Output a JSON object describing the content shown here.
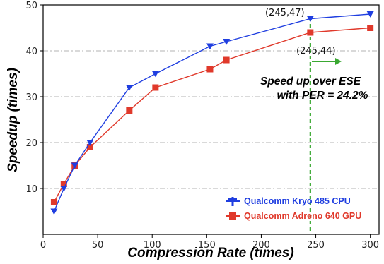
{
  "chart_data": {
    "type": "line",
    "xlabel": "Compression Rate (times)",
    "ylabel": "Speedup (times)",
    "xlim": [
      0,
      308
    ],
    "ylim": [
      0,
      50
    ],
    "xticks": [
      0,
      50,
      100,
      150,
      200,
      250,
      300
    ],
    "yticks": [
      10,
      20,
      30,
      40,
      50
    ],
    "grid": "horizontal dash-dot",
    "legend_position": "bottom-right",
    "series": [
      {
        "name": "Qualcomm Kryo 485 CPU",
        "color": "#1f3ee0",
        "marker": "triangle-down",
        "x": [
          10,
          19,
          29,
          43,
          79,
          103,
          153,
          168,
          245,
          300
        ],
        "y": [
          5,
          10,
          15,
          20,
          32,
          35,
          41,
          42,
          47,
          48
        ]
      },
      {
        "name": "Qualcomm Adreno 640 GPU",
        "color": "#e0392b",
        "marker": "square",
        "x": [
          10,
          19,
          29,
          43,
          79,
          103,
          153,
          168,
          245,
          300
        ],
        "y": [
          7,
          11,
          15,
          19,
          27,
          32,
          36,
          38,
          44,
          45
        ]
      }
    ],
    "annotations": [
      {
        "text": "(245,47)",
        "x": 245,
        "y": 47
      },
      {
        "text": "(245,44)",
        "x": 245,
        "y": 44
      },
      {
        "text_line1": "Speed up over ESE",
        "text_line2": "with PER = 24.2%"
      }
    ],
    "reference_line": {
      "x": 245,
      "color": "#3aa832"
    }
  }
}
